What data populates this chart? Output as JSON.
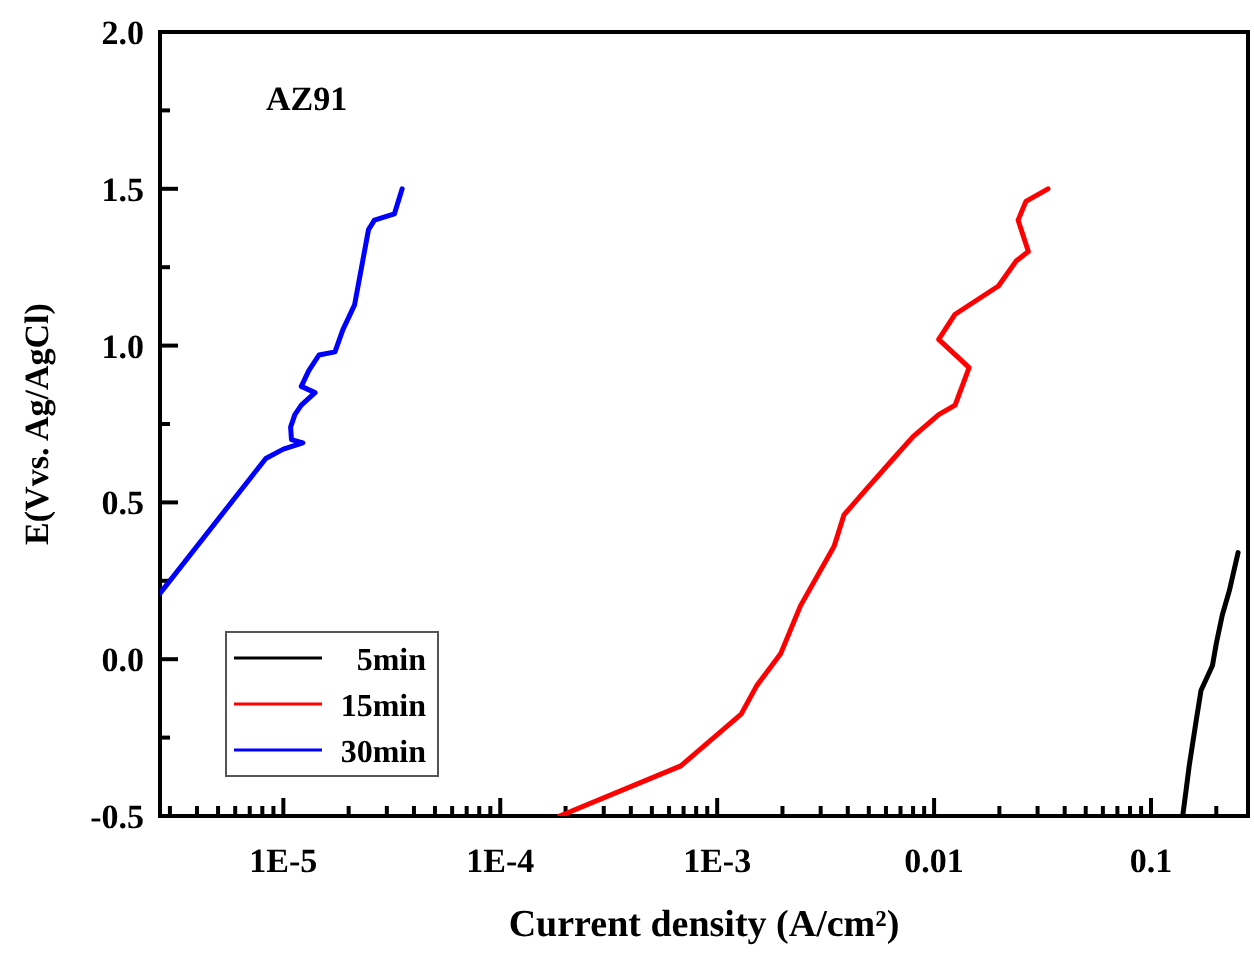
{
  "chart_data": {
    "type": "line",
    "xlabel": "Current density (A/cm²)",
    "ylabel": "E(Vvs. Ag/AgCl)",
    "annotations": [
      "AZ91"
    ],
    "log": "x",
    "legend": "bottom left",
    "grid": false,
    "xlim": [
      2.7e-06,
      0.28
    ],
    "ylim": [
      -0.5,
      2.0
    ],
    "xticks": [
      {
        "value": 3e-06,
        "label": null
      },
      {
        "value": 4e-06,
        "label": null
      },
      {
        "value": 5e-06,
        "label": null
      },
      {
        "value": 6e-06,
        "label": null
      },
      {
        "value": 7e-06,
        "label": null
      },
      {
        "value": 8e-06,
        "label": null
      },
      {
        "value": 9e-06,
        "label": null
      },
      {
        "value": 1e-05,
        "label": "1E-5"
      },
      {
        "value": 2e-05,
        "label": null
      },
      {
        "value": 3e-05,
        "label": null
      },
      {
        "value": 4e-05,
        "label": null
      },
      {
        "value": 5e-05,
        "label": null
      },
      {
        "value": 6e-05,
        "label": null
      },
      {
        "value": 7e-05,
        "label": null
      },
      {
        "value": 8e-05,
        "label": null
      },
      {
        "value": 9e-05,
        "label": null
      },
      {
        "value": 0.0001,
        "label": "1E-4"
      },
      {
        "value": 0.0002,
        "label": null
      },
      {
        "value": 0.0003,
        "label": null
      },
      {
        "value": 0.0004,
        "label": null
      },
      {
        "value": 0.0005,
        "label": null
      },
      {
        "value": 0.0006,
        "label": null
      },
      {
        "value": 0.0007,
        "label": null
      },
      {
        "value": 0.0008,
        "label": null
      },
      {
        "value": 0.0009,
        "label": null
      },
      {
        "value": 0.001,
        "label": "1E-3"
      },
      {
        "value": 0.002,
        "label": null
      },
      {
        "value": 0.003,
        "label": null
      },
      {
        "value": 0.004,
        "label": null
      },
      {
        "value": 0.005,
        "label": null
      },
      {
        "value": 0.006,
        "label": null
      },
      {
        "value": 0.007,
        "label": null
      },
      {
        "value": 0.008,
        "label": null
      },
      {
        "value": 0.009,
        "label": null
      },
      {
        "value": 0.01,
        "label": "0.01"
      },
      {
        "value": 0.02,
        "label": null
      },
      {
        "value": 0.03,
        "label": null
      },
      {
        "value": 0.04,
        "label": null
      },
      {
        "value": 0.05,
        "label": null
      },
      {
        "value": 0.06,
        "label": null
      },
      {
        "value": 0.07,
        "label": null
      },
      {
        "value": 0.08,
        "label": null
      },
      {
        "value": 0.09,
        "label": null
      },
      {
        "value": 0.1,
        "label": "0.1"
      },
      {
        "value": 0.2,
        "label": null
      }
    ],
    "yticks": [
      -0.5,
      {
        "value": -0.25,
        "label": null
      },
      {
        "value": 0,
        "label": "0.0"
      },
      {
        "value": 0.25,
        "label": null
      },
      0.5,
      {
        "value": 0.75,
        "label": null
      },
      {
        "value": 1,
        "label": "1.0"
      },
      {
        "value": 1.25,
        "label": null
      },
      1.5,
      {
        "value": 1.75,
        "label": null
      },
      {
        "value": 2,
        "label": "2.0"
      }
    ],
    "series": [
      {
        "name": "5min",
        "color": "#000000",
        "x": [
          0.14,
          0.145,
          0.15,
          0.162,
          0.17,
          0.192,
          0.2,
          0.213,
          0.23,
          0.252
        ],
        "values": [
          -0.5,
          -0.42,
          -0.34,
          -0.19,
          -0.1,
          -0.02,
          0.05,
          0.14,
          0.22,
          0.34
        ]
      },
      {
        "name": "15min",
        "color": "#ff0000",
        "x": [
          0.000188,
          0.00068,
          0.00129,
          0.00152,
          0.00196,
          0.00242,
          0.00346,
          0.00384,
          0.00484,
          0.0065,
          0.008,
          0.0105,
          0.0125,
          0.0145,
          0.0105,
          0.0125,
          0.0198,
          0.0239,
          0.0272,
          0.0244,
          0.0265,
          0.0335
        ],
        "values": [
          -0.5,
          -0.34,
          -0.175,
          -0.085,
          0.017,
          0.17,
          0.36,
          0.46,
          0.54,
          0.64,
          0.71,
          0.78,
          0.81,
          0.93,
          1.02,
          1.1,
          1.19,
          1.27,
          1.3,
          1.4,
          1.46,
          1.5
        ]
      },
      {
        "name": "30min",
        "color": "#0000ff",
        "x": [
          2.7e-06,
          8.3e-06,
          1e-05,
          1.23e-05,
          1.09e-05,
          1.08e-05,
          1.13e-05,
          1.21e-05,
          1.4e-05,
          1.21e-05,
          1.31e-05,
          1.46e-05,
          1.73e-05,
          1.88e-05,
          2.13e-05,
          2.47e-05,
          2.63e-05,
          3.25e-05,
          3.53e-05
        ],
        "values": [
          0.21,
          0.64,
          0.67,
          0.69,
          0.7,
          0.74,
          0.78,
          0.81,
          0.85,
          0.87,
          0.92,
          0.97,
          0.98,
          1.05,
          1.13,
          1.37,
          1.4,
          1.42,
          1.5
        ]
      }
    ]
  }
}
